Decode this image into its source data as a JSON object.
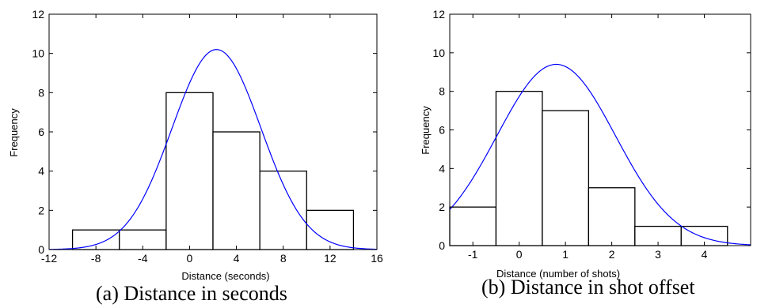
{
  "chart_data": [
    {
      "type": "bar",
      "panel_caption": "(a) Distance in seconds",
      "xlabel": "Distance (seconds)",
      "ylabel": "Frequency",
      "xlim": [
        -12,
        16
      ],
      "ylim": [
        0,
        12
      ],
      "xticks": [
        -12,
        -8,
        -4,
        0,
        4,
        8,
        12,
        16
      ],
      "xtick_labels": [
        "-12",
        "-8",
        "-4",
        "0",
        "4",
        "8",
        "12",
        "16"
      ],
      "yticks": [
        0,
        2,
        4,
        6,
        8,
        10,
        12
      ],
      "ytick_labels": [
        "0",
        "2",
        "4",
        "6",
        "8",
        "10",
        "12"
      ],
      "bins": [
        {
          "x0": -10,
          "x1": -6,
          "value": 1
        },
        {
          "x0": -6,
          "x1": -2,
          "value": 1
        },
        {
          "x0": -2,
          "x1": 2,
          "value": 8
        },
        {
          "x0": 2,
          "x1": 6,
          "value": 6
        },
        {
          "x0": 6,
          "x1": 10,
          "value": 4
        },
        {
          "x0": 10,
          "x1": 14,
          "value": 2
        }
      ],
      "fit_curve": {
        "type": "normal",
        "mean": 2.3,
        "std": 3.8,
        "peak": 10.2,
        "color": "#0000ff"
      },
      "bar_fill": "#ffffff",
      "bar_edge": "#000000",
      "grid": false
    },
    {
      "type": "bar",
      "panel_caption": "(b) Distance in shot offset",
      "xlabel": "Distance (number of shots)",
      "ylabel": "Frequency",
      "xlim": [
        -1.5,
        5
      ],
      "ylim": [
        0,
        12
      ],
      "xticks": [
        -1,
        0,
        1,
        2,
        3,
        4
      ],
      "xtick_labels": [
        "-1",
        "0",
        "1",
        "2",
        "3",
        "4"
      ],
      "yticks": [
        0,
        2,
        4,
        6,
        8,
        10,
        12
      ],
      "ytick_labels": [
        "0",
        "2",
        "4",
        "6",
        "8",
        "10",
        "12"
      ],
      "bins": [
        {
          "x0": -1.5,
          "x1": -0.5,
          "value": 2
        },
        {
          "x0": -0.5,
          "x1": 0.5,
          "value": 8
        },
        {
          "x0": 0.5,
          "x1": 1.5,
          "value": 7
        },
        {
          "x0": 1.5,
          "x1": 2.5,
          "value": 3
        },
        {
          "x0": 2.5,
          "x1": 3.5,
          "value": 1
        },
        {
          "x0": 3.5,
          "x1": 4.5,
          "value": 1
        }
      ],
      "fit_curve": {
        "type": "normal",
        "mean": 0.8,
        "std": 1.28,
        "peak": 9.4,
        "color": "#0000ff"
      },
      "bar_fill": "#ffffff",
      "bar_edge": "#000000",
      "grid": false
    }
  ]
}
